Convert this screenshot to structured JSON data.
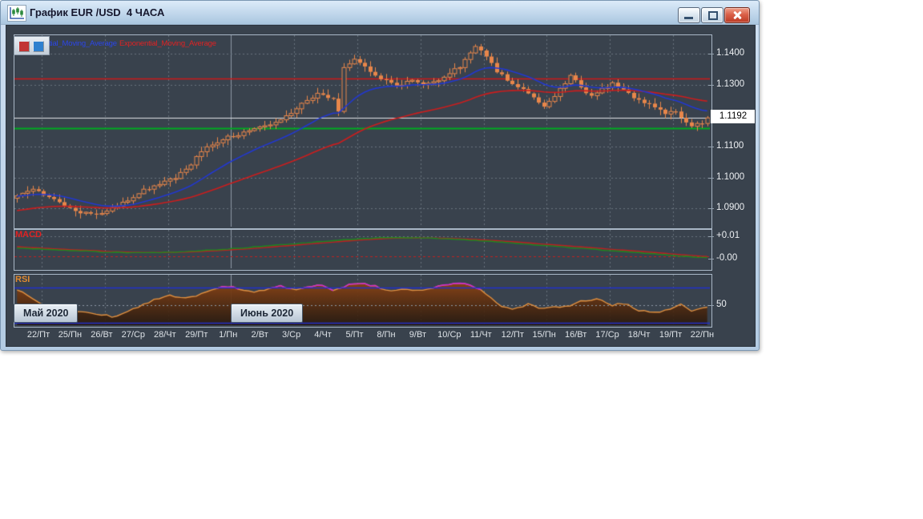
{
  "window": {
    "title": "График EUR /USD  4 ЧАСА"
  },
  "legend": {
    "ema_fast_label": "Exponential_Moving_Average",
    "ema_slow_label": "Exponential_Moving_Average"
  },
  "panels": {
    "macd_label": "MACD",
    "rsi_label": "RSI"
  },
  "colors": {
    "bg": "#39424d",
    "panel_border": "#a9b7c6",
    "candle": "#e8864a",
    "ema_fast": "#2238d0",
    "ema_slow": "#cc1d1d",
    "level_red": "#d01818",
    "level_green": "#00aa22",
    "level_white": "#dfe3e6",
    "macd_main": "#1e8a1e",
    "macd_signal": "#c02020",
    "rsi_line": "#e09040",
    "rsi_over": "#cc2ccc",
    "rsi_bounds": "#2230cc",
    "grid": "#68727e",
    "month_line": "#8d99a6"
  },
  "chart_data": {
    "type": "candlestick",
    "symbol": "EUR /USD",
    "interval": "4 ЧАСА",
    "x_categories_days": [
      "22/Пт",
      "25/Пн",
      "26/Вт",
      "27/Ср",
      "28/Чт",
      "29/Пт",
      "1/Пн",
      "2/Вт",
      "3/Ср",
      "4/Чт",
      "5/Пт",
      "8/Пн",
      "9/Вт",
      "10/Ср",
      "11/Чт",
      "12/Пт",
      "15/Пн",
      "16/Вт",
      "17/Ср",
      "18/Чт",
      "19/Пт",
      "22/Пн"
    ],
    "candles_per_day": 6,
    "months": [
      {
        "label": "Май 2020"
      },
      {
        "label": "Июнь 2020"
      }
    ],
    "price_ticks": [
      {
        "text": "1.1400",
        "value": 1.14
      },
      {
        "text": "1.1300",
        "value": 1.13
      },
      {
        "text": "1.1100",
        "value": 1.11
      },
      {
        "text": "1.1000",
        "value": 1.1
      },
      {
        "text": "1.0900",
        "value": 1.09
      }
    ],
    "current_price": {
      "text": "1.1192",
      "value": 1.1192
    },
    "levels": {
      "red_line": 1.132,
      "green_line": 1.116,
      "white_line": 1.1192
    },
    "close_path_anchors": [
      [
        0,
        1.0945
      ],
      [
        3,
        1.0962
      ],
      [
        6,
        1.0938
      ],
      [
        9,
        1.0908
      ],
      [
        12,
        1.0888
      ],
      [
        15,
        1.0876
      ],
      [
        18,
        1.0898
      ],
      [
        21,
        1.0925
      ],
      [
        24,
        1.0958
      ],
      [
        27,
        1.098
      ],
      [
        30,
        1.1
      ],
      [
        33,
        1.1045
      ],
      [
        36,
        1.11
      ],
      [
        39,
        1.1125
      ],
      [
        42,
        1.1138
      ],
      [
        45,
        1.1155
      ],
      [
        48,
        1.117
      ],
      [
        51,
        1.12
      ],
      [
        54,
        1.1235
      ],
      [
        57,
        1.127
      ],
      [
        60,
        1.125
      ],
      [
        61,
        1.1218
      ],
      [
        62,
        1.1355
      ],
      [
        64,
        1.1378
      ],
      [
        66,
        1.1355
      ],
      [
        69,
        1.132
      ],
      [
        72,
        1.1295
      ],
      [
        75,
        1.1312
      ],
      [
        78,
        1.13
      ],
      [
        81,
        1.1325
      ],
      [
        84,
        1.1358
      ],
      [
        87,
        1.142
      ],
      [
        89,
        1.1392
      ],
      [
        91,
        1.1345
      ],
      [
        94,
        1.1302
      ],
      [
        97,
        1.1272
      ],
      [
        100,
        1.1232
      ],
      [
        102,
        1.1262
      ],
      [
        105,
        1.133
      ],
      [
        107,
        1.1292
      ],
      [
        109,
        1.1262
      ],
      [
        111,
        1.1287
      ],
      [
        113,
        1.1305
      ],
      [
        115,
        1.1285
      ],
      [
        117,
        1.1258
      ],
      [
        119,
        1.1242
      ],
      [
        121,
        1.1228
      ],
      [
        123,
        1.1206
      ],
      [
        125,
        1.1212
      ],
      [
        127,
        1.1182
      ],
      [
        128,
        1.1165
      ],
      [
        130,
        1.1178
      ],
      [
        131,
        1.1192
      ]
    ],
    "ema": {
      "fast_period": 18,
      "slow_period": 50
    },
    "macd": {
      "ticks": [
        {
          "text": "+0.01",
          "value": 0.01
        },
        {
          "text": "-0.00",
          "value": 0.0
        }
      ],
      "zero_dash_value": 0.0012,
      "signal_ema_period": 8,
      "main_anchors": [
        [
          0,
          0.0047
        ],
        [
          0.06,
          0.004
        ],
        [
          0.12,
          0.003
        ],
        [
          0.18,
          0.0026
        ],
        [
          0.24,
          0.003
        ],
        [
          0.3,
          0.0042
        ],
        [
          0.36,
          0.0056
        ],
        [
          0.42,
          0.0071
        ],
        [
          0.48,
          0.0086
        ],
        [
          0.53,
          0.0094
        ],
        [
          0.58,
          0.0094
        ],
        [
          0.63,
          0.0088
        ],
        [
          0.68,
          0.0078
        ],
        [
          0.74,
          0.0064
        ],
        [
          0.8,
          0.005
        ],
        [
          0.86,
          0.0036
        ],
        [
          0.92,
          0.0022
        ],
        [
          0.96,
          0.0012
        ],
        [
          1,
          0.0005
        ]
      ]
    },
    "rsi": {
      "tick": {
        "text": "50",
        "value": 50
      },
      "upper_band": 70,
      "lower_band": 30,
      "mid": 50,
      "path_anchors": [
        [
          0,
          68
        ],
        [
          0.02,
          58
        ],
        [
          0.04,
          50
        ],
        [
          0.06,
          46
        ],
        [
          0.09,
          42
        ],
        [
          0.11,
          40
        ],
        [
          0.14,
          37
        ],
        [
          0.16,
          42
        ],
        [
          0.18,
          50
        ],
        [
          0.2,
          56
        ],
        [
          0.22,
          62
        ],
        [
          0.24,
          58
        ],
        [
          0.26,
          61
        ],
        [
          0.28,
          66
        ],
        [
          0.3,
          71
        ],
        [
          0.32,
          69
        ],
        [
          0.34,
          64
        ],
        [
          0.36,
          68
        ],
        [
          0.38,
          72
        ],
        [
          0.4,
          67
        ],
        [
          0.42,
          70
        ],
        [
          0.44,
          72
        ],
        [
          0.46,
          67
        ],
        [
          0.48,
          73
        ],
        [
          0.5,
          75
        ],
        [
          0.52,
          71
        ],
        [
          0.54,
          67
        ],
        [
          0.56,
          69
        ],
        [
          0.58,
          66
        ],
        [
          0.6,
          70
        ],
        [
          0.63,
          75
        ],
        [
          0.66,
          73
        ],
        [
          0.68,
          62
        ],
        [
          0.7,
          50
        ],
        [
          0.72,
          45
        ],
        [
          0.74,
          51
        ],
        [
          0.76,
          46
        ],
        [
          0.78,
          49
        ],
        [
          0.8,
          48
        ],
        [
          0.82,
          55
        ],
        [
          0.84,
          57
        ],
        [
          0.86,
          50
        ],
        [
          0.88,
          52
        ],
        [
          0.9,
          44
        ],
        [
          0.92,
          41
        ],
        [
          0.94,
          44
        ],
        [
          0.96,
          51
        ],
        [
          0.98,
          43
        ],
        [
          1,
          47
        ]
      ]
    }
  }
}
